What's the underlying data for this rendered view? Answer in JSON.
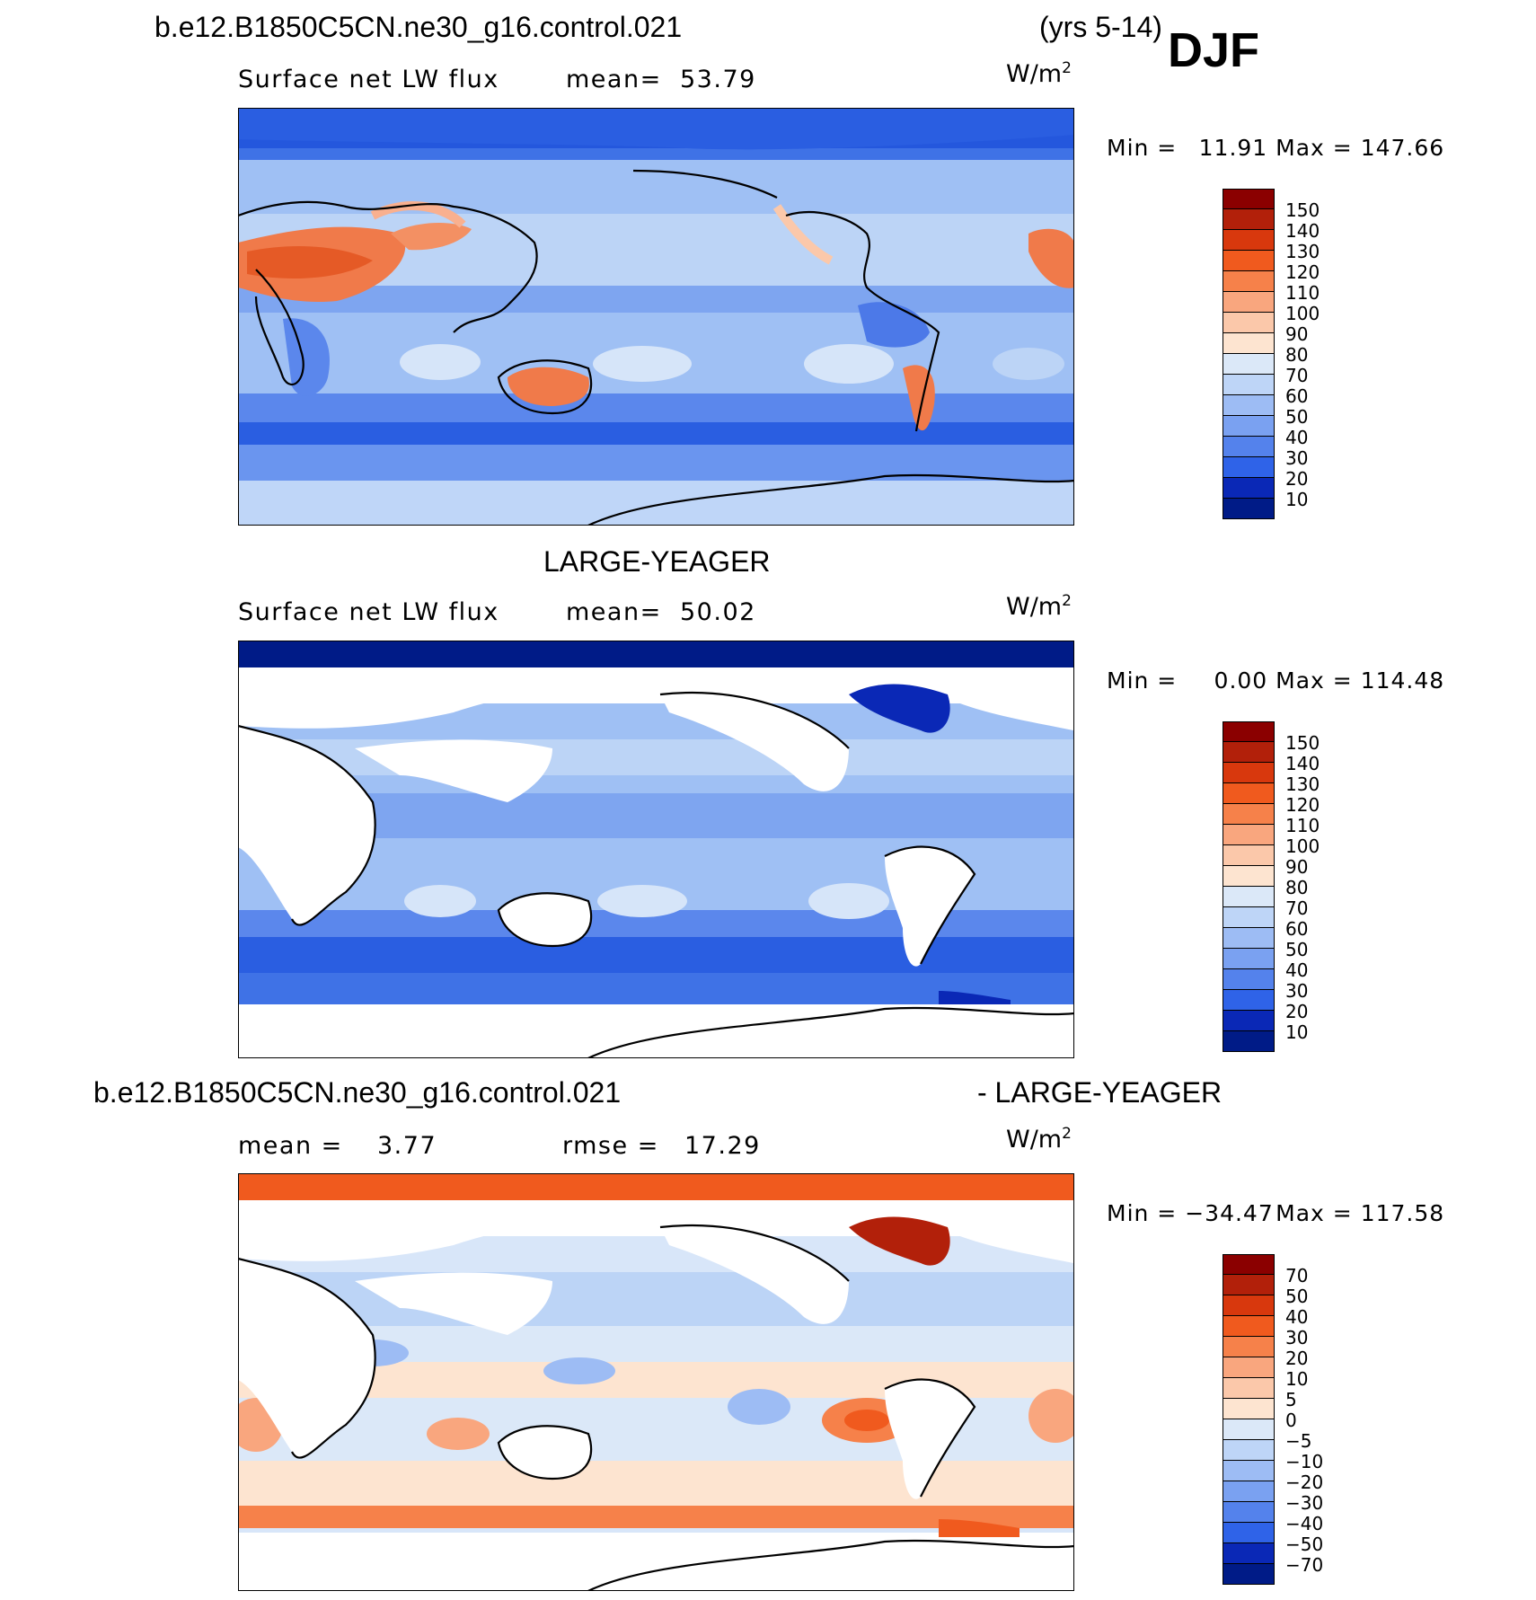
{
  "header": {
    "case_name": "b.e12.B1850C5CN.ne30_g16.control.021",
    "years": "(yrs 5-14)",
    "season": "DJF"
  },
  "panels": [
    {
      "title": "",
      "variable": "Surface net LW flux",
      "stat1_label": "mean=",
      "stat1_value": "53.79",
      "stat2_label": "",
      "stat2_value": "",
      "units": "W/m",
      "units_exp": "2",
      "min_label": "Min =",
      "min_value": "11.91",
      "max_label": "Max =",
      "max_value": "147.66",
      "levels": [
        "150",
        "140",
        "130",
        "120",
        "110",
        "100",
        "90",
        "80",
        "70",
        "60",
        "50",
        "40",
        "30",
        "20",
        "10"
      ],
      "colors": [
        "#8b0000",
        "#b2200a",
        "#d8380d",
        "#f05a1e",
        "#f6814a",
        "#f9a67e",
        "#fbc8aa",
        "#fde4d0",
        "#dbe8f8",
        "#bed5f7",
        "#9dbcf4",
        "#7aa1f1",
        "#5482ec",
        "#2f63e8",
        "#1543d8",
        "#0a28b6",
        "#001b87"
      ]
    },
    {
      "title": "LARGE-YEAGER",
      "variable": "Surface net LW flux",
      "stat1_label": "mean=",
      "stat1_value": "50.02",
      "stat2_label": "",
      "stat2_value": "",
      "units": "W/m",
      "units_exp": "2",
      "min_label": "Min =",
      "min_value": "0.00",
      "max_label": "Max =",
      "max_value": "114.48",
      "levels": [
        "150",
        "140",
        "130",
        "120",
        "110",
        "100",
        "90",
        "80",
        "70",
        "60",
        "50",
        "40",
        "30",
        "20",
        "10"
      ],
      "colors": [
        "#8b0000",
        "#b2200a",
        "#d8380d",
        "#f05a1e",
        "#f6814a",
        "#f9a67e",
        "#fbc8aa",
        "#fde4d0",
        "#dbe8f8",
        "#bed5f7",
        "#9dbcf4",
        "#7aa1f1",
        "#5482ec",
        "#2f63e8",
        "#1543d8",
        "#0a28b6",
        "#001b87"
      ]
    },
    {
      "title_left": "b.e12.B1850C5CN.ne30_g16.control.021",
      "title_right": "- LARGE-YEAGER",
      "variable": "",
      "stat1_label": "mean =",
      "stat1_value": "3.77",
      "stat2_label": "rmse =",
      "stat2_value": "17.29",
      "units": "W/m",
      "units_exp": "2",
      "min_label": "Min =",
      "min_value": "−34.47",
      "max_label": "Max =",
      "max_value": "117.58",
      "levels": [
        "70",
        "50",
        "40",
        "30",
        "20",
        "10",
        "5",
        "0",
        "−5",
        "−10",
        "−20",
        "−30",
        "−40",
        "−50",
        "−70"
      ],
      "colors": [
        "#8b0000",
        "#b2200a",
        "#d8380d",
        "#f05a1e",
        "#f6814a",
        "#f9a67e",
        "#fbc8aa",
        "#fde4d0",
        "#dbe8f8",
        "#bed5f7",
        "#9dbcf4",
        "#7aa1f1",
        "#5482ec",
        "#2f63e8",
        "#1543d8",
        "#0a28b6",
        "#001b87"
      ]
    }
  ]
}
